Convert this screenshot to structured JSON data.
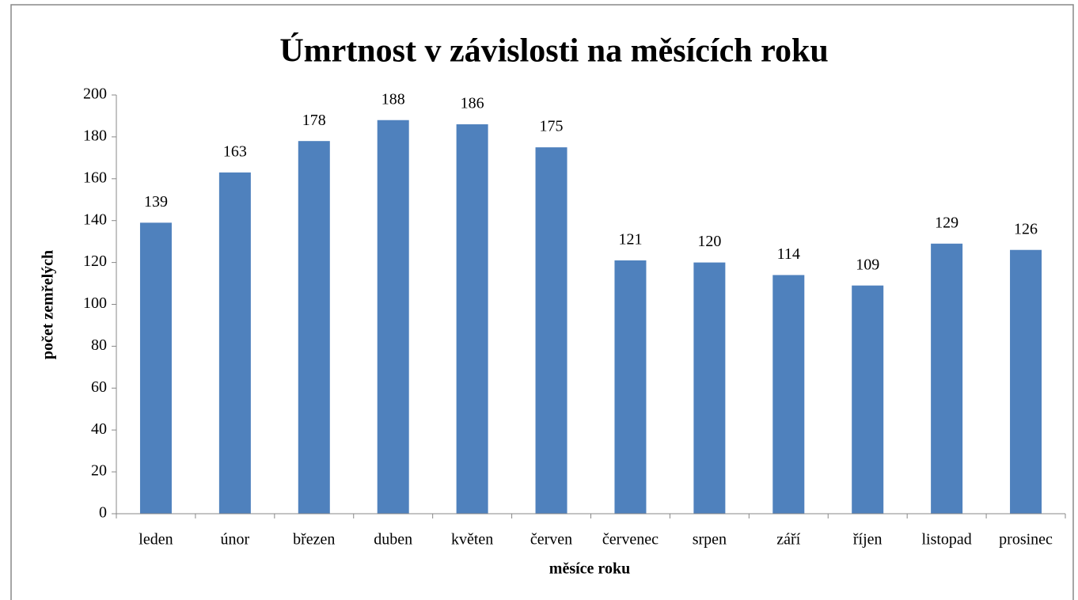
{
  "chart_data": {
    "type": "bar",
    "title": "Úmrtnost v závislosti na měsících roku",
    "x_label": "měsíce roku",
    "y_label": "počet zemřelých",
    "categories": [
      "leden",
      "únor",
      "březen",
      "duben",
      "květen",
      "červen",
      "červenec",
      "srpen",
      "září",
      "říjen",
      "listopad",
      "prosinec"
    ],
    "values": [
      139,
      163,
      178,
      188,
      186,
      175,
      121,
      120,
      114,
      109,
      129,
      126
    ],
    "color": "#4f81bd",
    "ylim": [
      0,
      200
    ],
    "yticks": [
      0,
      20,
      40,
      60,
      80,
      100,
      120,
      140,
      160,
      180,
      200
    ],
    "grid": false
  }
}
